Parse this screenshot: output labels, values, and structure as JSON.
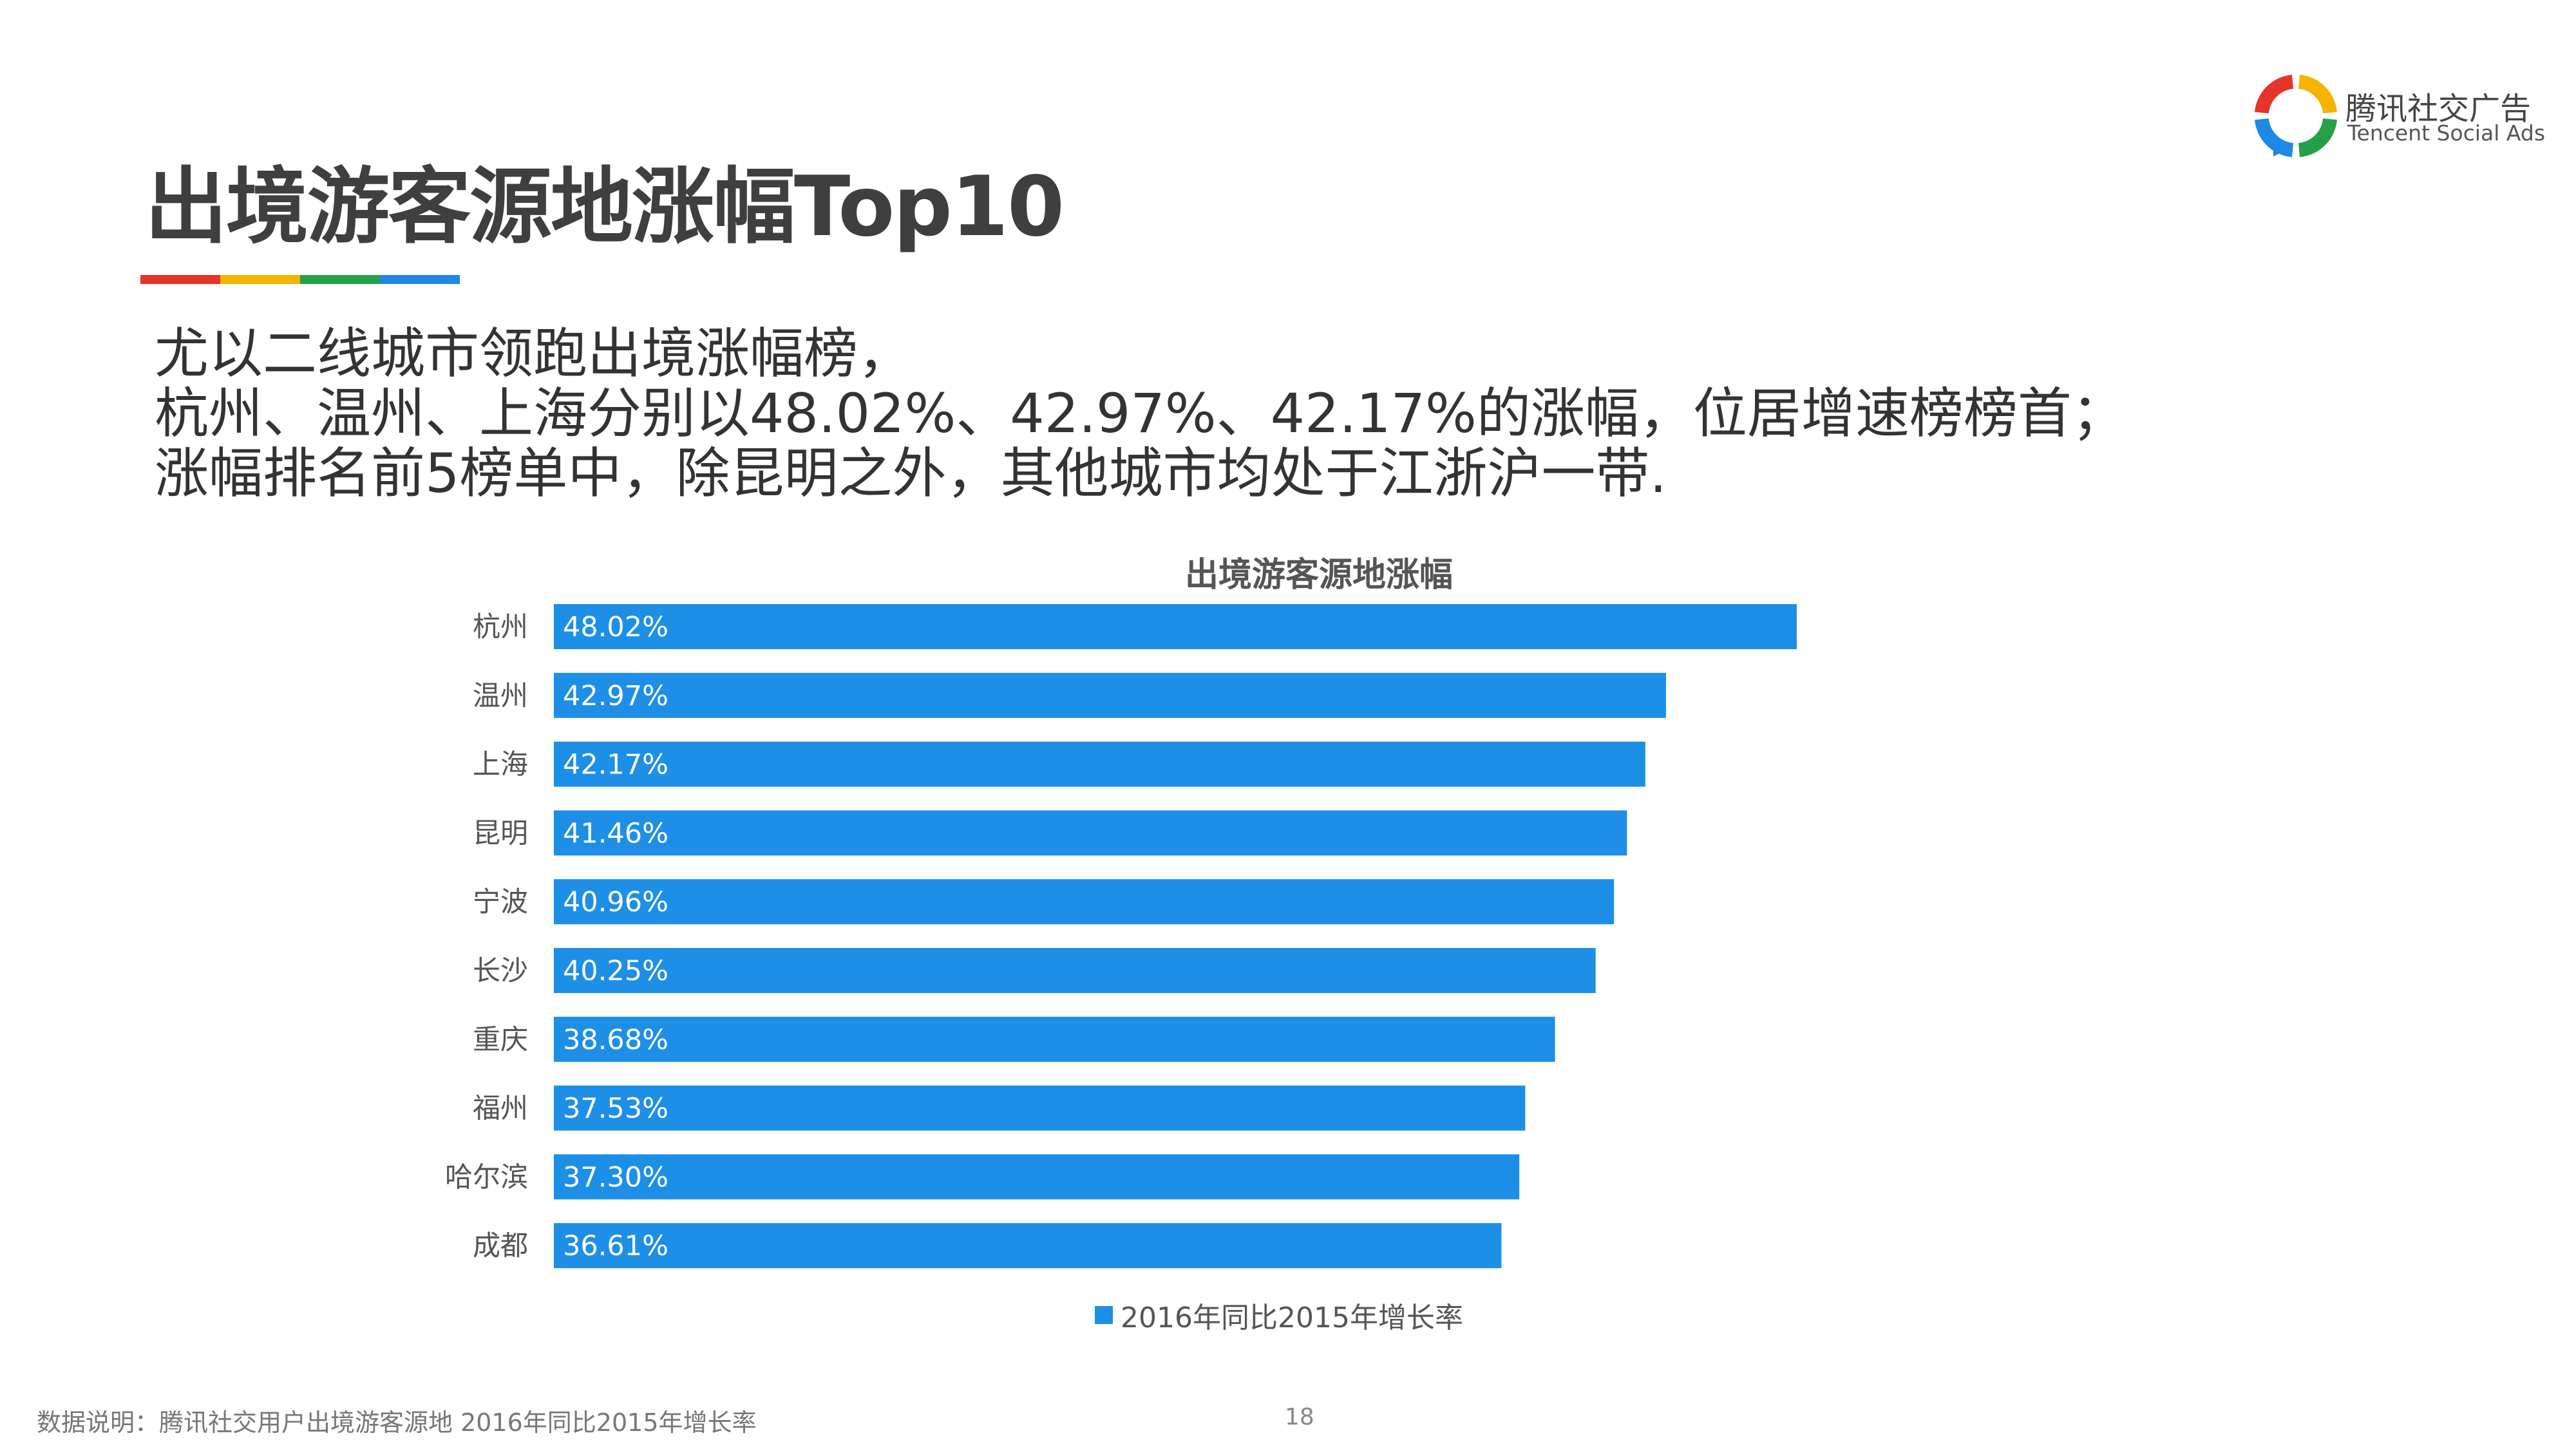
{
  "brand": {
    "name_cn": "腾讯社交广告",
    "name_en": "Tencent Social Ads",
    "colors": [
      "#e5342a",
      "#f5b400",
      "#24a148",
      "#1e88e5"
    ]
  },
  "page": {
    "title": "出境游客源地涨幅Top10",
    "title_bar_colors": [
      "#e5342a",
      "#f5b400",
      "#24a148",
      "#1e88e5"
    ],
    "description": [
      "尤以二线城市领跑出境涨幅榜，",
      "杭州、温州、上海分别以48.02%、42.97%、42.17%的涨幅，位居增速榜榜首；",
      "涨幅排名前5榜单中，除昆明之外，其他城市均处于江浙沪一带."
    ],
    "footnote": "数据说明：腾讯社交用户出境游客源地 2016年同比2015年增长率",
    "page_number": "18"
  },
  "chart_data": {
    "type": "bar",
    "orientation": "horizontal",
    "title": "出境游客源地涨幅",
    "categories": [
      "杭州",
      "温州",
      "上海",
      "昆明",
      "宁波",
      "长沙",
      "重庆",
      "福州",
      "哈尔滨",
      "成都"
    ],
    "series": [
      {
        "name": "2016年同比2015年增长率",
        "values": [
          48.02,
          42.97,
          42.17,
          41.46,
          40.96,
          40.25,
          38.68,
          37.53,
          37.3,
          36.61
        ],
        "labels": [
          "48.02%",
          "42.97%",
          "42.17%",
          "41.46%",
          "40.96%",
          "40.25%",
          "38.68%",
          "37.53%",
          "37.30%",
          "36.61%"
        ],
        "color": "#1e8fe6"
      }
    ],
    "xlim": [
      0,
      48.02
    ],
    "legend_position": "bottom",
    "grid": false
  }
}
